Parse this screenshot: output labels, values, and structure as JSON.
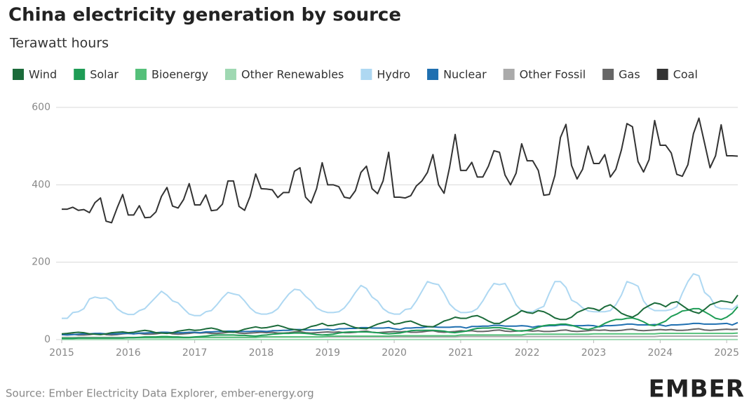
{
  "chart_data": {
    "type": "line",
    "title": "China electricity generation by source",
    "subtitle": "Terawatt hours",
    "source": "Source: Ember Electricity Data Explorer, ember-energy.org",
    "logo": "EMBER",
    "xlim": [
      2015,
      2025.167
    ],
    "xticks": [
      2015,
      2016,
      2017,
      2018,
      2019,
      2020,
      2021,
      2022,
      2023,
      2024,
      2025
    ],
    "ylim": [
      0,
      600
    ],
    "yticks": [
      0,
      200,
      400,
      600
    ],
    "grid": true,
    "x": [
      2015,
      2015.083,
      2015.167,
      2015.25,
      2015.333,
      2015.417,
      2015.5,
      2015.583,
      2015.667,
      2015.75,
      2015.833,
      2015.917,
      2016,
      2016.083,
      2016.167,
      2016.25,
      2016.333,
      2016.417,
      2016.5,
      2016.583,
      2016.667,
      2016.75,
      2016.833,
      2016.917,
      2017,
      2017.083,
      2017.167,
      2017.25,
      2017.333,
      2017.417,
      2017.5,
      2017.583,
      2017.667,
      2017.75,
      2017.833,
      2017.917,
      2018,
      2018.083,
      2018.167,
      2018.25,
      2018.333,
      2018.417,
      2018.5,
      2018.583,
      2018.667,
      2018.75,
      2018.833,
      2018.917,
      2019,
      2019.083,
      2019.167,
      2019.25,
      2019.333,
      2019.417,
      2019.5,
      2019.583,
      2019.667,
      2019.75,
      2019.833,
      2019.917,
      2020,
      2020.083,
      2020.167,
      2020.25,
      2020.333,
      2020.417,
      2020.5,
      2020.583,
      2020.667,
      2020.75,
      2020.833,
      2020.917,
      2021,
      2021.083,
      2021.167,
      2021.25,
      2021.333,
      2021.417,
      2021.5,
      2021.583,
      2021.667,
      2021.75,
      2021.833,
      2021.917,
      2022,
      2022.083,
      2022.167,
      2022.25,
      2022.333,
      2022.417,
      2022.5,
      2022.583,
      2022.667,
      2022.75,
      2022.833,
      2022.917,
      2023,
      2023.083,
      2023.167,
      2023.25,
      2023.333,
      2023.417,
      2023.5,
      2023.583,
      2023.667,
      2023.75,
      2023.833,
      2023.917,
      2024,
      2024.083,
      2024.167,
      2024.25,
      2024.333,
      2024.417,
      2024.5,
      2024.583,
      2024.667,
      2024.75,
      2024.833,
      2024.917,
      2025,
      2025.083,
      2025.167
    ],
    "series": [
      {
        "name": "Wind",
        "color": "#1b6b3a",
        "values": [
          15,
          16,
          18,
          19,
          18,
          15,
          14,
          13,
          15,
          18,
          19,
          20,
          18,
          19,
          22,
          24,
          22,
          18,
          17,
          16,
          18,
          22,
          24,
          26,
          24,
          25,
          28,
          30,
          27,
          22,
          20,
          19,
          22,
          27,
          30,
          33,
          30,
          31,
          34,
          37,
          33,
          28,
          26,
          24,
          28,
          34,
          37,
          42,
          36,
          37,
          40,
          42,
          36,
          31,
          29,
          28,
          34,
          40,
          44,
          48,
          40,
          42,
          46,
          48,
          42,
          36,
          34,
          33,
          40,
          48,
          52,
          58,
          55,
          55,
          60,
          62,
          56,
          48,
          42,
          42,
          50,
          58,
          65,
          75,
          70,
          68,
          75,
          72,
          65,
          56,
          52,
          52,
          58,
          70,
          76,
          82,
          80,
          75,
          85,
          90,
          80,
          68,
          62,
          58,
          66,
          80,
          88,
          95,
          92,
          85,
          95,
          98,
          88,
          78,
          72,
          68,
          78,
          90,
          95,
          100,
          98,
          95,
          115
        ]
      },
      {
        "name": "Solar",
        "color": "#1e9c55",
        "values": [
          3,
          3,
          3,
          4,
          4,
          4,
          4,
          4,
          4,
          4,
          4,
          4,
          5,
          5,
          6,
          7,
          7,
          7,
          8,
          8,
          7,
          7,
          6,
          6,
          7,
          8,
          9,
          11,
          12,
          12,
          12,
          12,
          11,
          11,
          10,
          9,
          11,
          12,
          14,
          15,
          16,
          16,
          17,
          17,
          16,
          15,
          13,
          12,
          13,
          14,
          17,
          19,
          20,
          20,
          20,
          20,
          19,
          18,
          16,
          15,
          16,
          17,
          20,
          23,
          24,
          24,
          24,
          24,
          23,
          22,
          19,
          18,
          20,
          22,
          26,
          29,
          30,
          30,
          31,
          31,
          29,
          27,
          23,
          22,
          24,
          27,
          32,
          36,
          38,
          38,
          40,
          40,
          37,
          33,
          28,
          26,
          30,
          34,
          42,
          48,
          52,
          52,
          55,
          56,
          52,
          46,
          38,
          36,
          42,
          48,
          60,
          66,
          74,
          76,
          80,
          80,
          72,
          64,
          55,
          52,
          58,
          68,
          85
        ]
      },
      {
        "name": "Bioenergy",
        "color": "#55c07a",
        "values": [
          4,
          4,
          4,
          4,
          4,
          4,
          4,
          4,
          4,
          4,
          4,
          4,
          5,
          5,
          5,
          5,
          5,
          5,
          5,
          5,
          5,
          5,
          5,
          5,
          6,
          6,
          6,
          6,
          6,
          6,
          6,
          6,
          6,
          6,
          6,
          6,
          7,
          7,
          7,
          7,
          7,
          7,
          7,
          7,
          7,
          7,
          7,
          7,
          9,
          9,
          9,
          9,
          9,
          9,
          9,
          9,
          9,
          9,
          9,
          9,
          10,
          10,
          10,
          10,
          10,
          10,
          10,
          10,
          10,
          10,
          10,
          10,
          12,
          12,
          12,
          12,
          12,
          12,
          12,
          12,
          12,
          12,
          12,
          12,
          14,
          14,
          14,
          14,
          14,
          14,
          14,
          14,
          14,
          14,
          14,
          14,
          15,
          15,
          15,
          15,
          15,
          15,
          15,
          15,
          15,
          15,
          15,
          15,
          16,
          16,
          16,
          16,
          16,
          16,
          16,
          16,
          16,
          16,
          16,
          16,
          16,
          16,
          17
        ]
      },
      {
        "name": "Other Renewables",
        "color": "#9fd8b2",
        "values": [
          0.2,
          0.2,
          0.2,
          0.2,
          0.2,
          0.2,
          0.2,
          0.2,
          0.2,
          0.2,
          0.2,
          0.2,
          0.2,
          0.2,
          0.2,
          0.2,
          0.2,
          0.2,
          0.2,
          0.2,
          0.2,
          0.2,
          0.2,
          0.2,
          0.2,
          0.2,
          0.2,
          0.2,
          0.2,
          0.2,
          0.2,
          0.2,
          0.2,
          0.2,
          0.2,
          0.2,
          0.2,
          0.2,
          0.2,
          0.2,
          0.2,
          0.2,
          0.2,
          0.2,
          0.2,
          0.2,
          0.2,
          0.2,
          0.2,
          0.2,
          0.2,
          0.2,
          0.2,
          0.2,
          0.2,
          0.2,
          0.2,
          0.2,
          0.2,
          0.2,
          0.2,
          0.2,
          0.2,
          0.2,
          0.2,
          0.2,
          0.2,
          0.2,
          0.2,
          0.2,
          0.2,
          0.2,
          0.2,
          0.2,
          0.2,
          0.2,
          0.2,
          0.2,
          0.2,
          0.2,
          0.2,
          0.2,
          0.2,
          0.2,
          0.2,
          0.2,
          0.2,
          0.2,
          0.2,
          0.2,
          0.2,
          0.2,
          0.2,
          0.2,
          0.2,
          0.2,
          0.2,
          0.2,
          0.2,
          0.2,
          0.2,
          0.2,
          0.2,
          0.2,
          0.2,
          0.2,
          0.2,
          0.2,
          0.2,
          0.2,
          0.2,
          0.2,
          0.2,
          0.2,
          0.2,
          0.2,
          0.2,
          0.2,
          0.2,
          0.2,
          0.2,
          0.2,
          0.2
        ]
      },
      {
        "name": "Hydro",
        "color": "#aed8f2",
        "values": [
          55,
          55,
          70,
          72,
          80,
          105,
          110,
          107,
          108,
          100,
          80,
          70,
          65,
          65,
          75,
          80,
          95,
          110,
          125,
          115,
          100,
          95,
          80,
          66,
          62,
          62,
          72,
          75,
          90,
          108,
          122,
          118,
          115,
          100,
          82,
          70,
          66,
          66,
          70,
          80,
          100,
          118,
          130,
          128,
          112,
          100,
          82,
          74,
          70,
          70,
          72,
          82,
          100,
          122,
          140,
          132,
          110,
          100,
          80,
          70,
          66,
          66,
          78,
          80,
          100,
          125,
          150,
          145,
          142,
          120,
          92,
          78,
          70,
          70,
          72,
          80,
          100,
          125,
          145,
          142,
          145,
          120,
          90,
          74,
          72,
          72,
          80,
          86,
          120,
          150,
          150,
          135,
          102,
          95,
          82,
          74,
          72,
          72,
          72,
          75,
          90,
          115,
          150,
          145,
          138,
          100,
          82,
          75,
          75,
          75,
          78,
          85,
          120,
          150,
          170,
          165,
          122,
          110,
          85,
          80,
          80,
          78,
          90
        ]
      },
      {
        "name": "Nuclear",
        "color": "#1f6fb0",
        "values": [
          13,
          12,
          13,
          14,
          15,
          15,
          16,
          16,
          15,
          15,
          15,
          16,
          16,
          15,
          17,
          17,
          18,
          18,
          19,
          19,
          18,
          18,
          18,
          19,
          19,
          18,
          20,
          20,
          21,
          21,
          22,
          22,
          21,
          21,
          21,
          22,
          22,
          21,
          23,
          23,
          24,
          24,
          26,
          26,
          25,
          25,
          25,
          26,
          27,
          25,
          28,
          28,
          29,
          29,
          31,
          31,
          30,
          30,
          30,
          31,
          28,
          26,
          30,
          30,
          31,
          31,
          33,
          33,
          32,
          32,
          32,
          33,
          33,
          30,
          34,
          34,
          35,
          35,
          37,
          37,
          35,
          35,
          35,
          36,
          35,
          32,
          35,
          35,
          36,
          36,
          38,
          38,
          36,
          36,
          36,
          37,
          36,
          33,
          36,
          36,
          37,
          38,
          40,
          40,
          38,
          38,
          38,
          39,
          38,
          35,
          38,
          38,
          39,
          40,
          42,
          42,
          40,
          40,
          40,
          41,
          42,
          38,
          44
        ]
      },
      {
        "name": "Other Fossil",
        "color": "#aaaaaa",
        "values": [
          6,
          6,
          6,
          6,
          6,
          6,
          6,
          6,
          6,
          6,
          6,
          6,
          6,
          6,
          6,
          6,
          6,
          6,
          6,
          6,
          6,
          6,
          6,
          6,
          6,
          6,
          6,
          6,
          6,
          6,
          6,
          6,
          6,
          6,
          6,
          6,
          7,
          7,
          7,
          7,
          7,
          7,
          7,
          7,
          7,
          7,
          7,
          7,
          7,
          7,
          7,
          7,
          7,
          7,
          7,
          7,
          7,
          7,
          7,
          7,
          7,
          7,
          7,
          7,
          7,
          7,
          7,
          7,
          7,
          7,
          7,
          7,
          8,
          8,
          8,
          8,
          8,
          8,
          8,
          8,
          8,
          8,
          8,
          8,
          8,
          8,
          8,
          8,
          8,
          8,
          8,
          8,
          8,
          8,
          8,
          8,
          8,
          8,
          8,
          8,
          8,
          8,
          8,
          8,
          8,
          8,
          8,
          8,
          9,
          9,
          9,
          9,
          9,
          9,
          9,
          9,
          9,
          9,
          9,
          9,
          9,
          9,
          9
        ]
      },
      {
        "name": "Gas",
        "color": "#666666",
        "values": [
          14,
          13,
          14,
          12,
          12,
          13,
          15,
          16,
          13,
          12,
          13,
          15,
          16,
          15,
          16,
          14,
          14,
          15,
          17,
          18,
          15,
          14,
          15,
          16,
          18,
          17,
          18,
          16,
          16,
          17,
          19,
          20,
          17,
          16,
          17,
          18,
          19,
          18,
          19,
          17,
          17,
          18,
          20,
          21,
          18,
          17,
          18,
          19,
          20,
          19,
          20,
          18,
          18,
          19,
          21,
          22,
          19,
          18,
          19,
          20,
          21,
          20,
          21,
          19,
          19,
          20,
          22,
          23,
          20,
          19,
          20,
          21,
          23,
          22,
          23,
          21,
          21,
          22,
          24,
          25,
          22,
          21,
          22,
          23,
          23,
          22,
          23,
          21,
          21,
          22,
          24,
          25,
          22,
          21,
          22,
          23,
          25,
          24,
          25,
          23,
          23,
          24,
          26,
          27,
          24,
          23,
          24,
          25,
          26,
          25,
          26,
          24,
          24,
          25,
          27,
          28,
          25,
          24,
          25,
          26,
          27,
          26,
          27
        ]
      },
      {
        "name": "Coal",
        "color": "#333333",
        "values": [
          337,
          337,
          342,
          334,
          336,
          328,
          354,
          366,
          306,
          302,
          340,
          375,
          322,
          322,
          346,
          315,
          316,
          330,
          370,
          393,
          345,
          340,
          362,
          403,
          348,
          348,
          374,
          333,
          335,
          350,
          410,
          410,
          344,
          334,
          370,
          428,
          390,
          389,
          387,
          367,
          380,
          380,
          435,
          444,
          368,
          353,
          390,
          457,
          400,
          400,
          395,
          368,
          365,
          385,
          432,
          448,
          390,
          377,
          410,
          484,
          368,
          368,
          366,
          372,
          397,
          410,
          432,
          478,
          400,
          378,
          445,
          530,
          437,
          437,
          458,
          420,
          420,
          448,
          488,
          484,
          425,
          400,
          430,
          506,
          462,
          462,
          437,
          373,
          375,
          424,
          522,
          556,
          450,
          415,
          440,
          500,
          455,
          455,
          478,
          420,
          440,
          490,
          558,
          550,
          460,
          433,
          465,
          566,
          502,
          502,
          482,
          427,
          422,
          452,
          532,
          572,
          508,
          444,
          475,
          555,
          475,
          475,
          474
        ]
      }
    ]
  }
}
